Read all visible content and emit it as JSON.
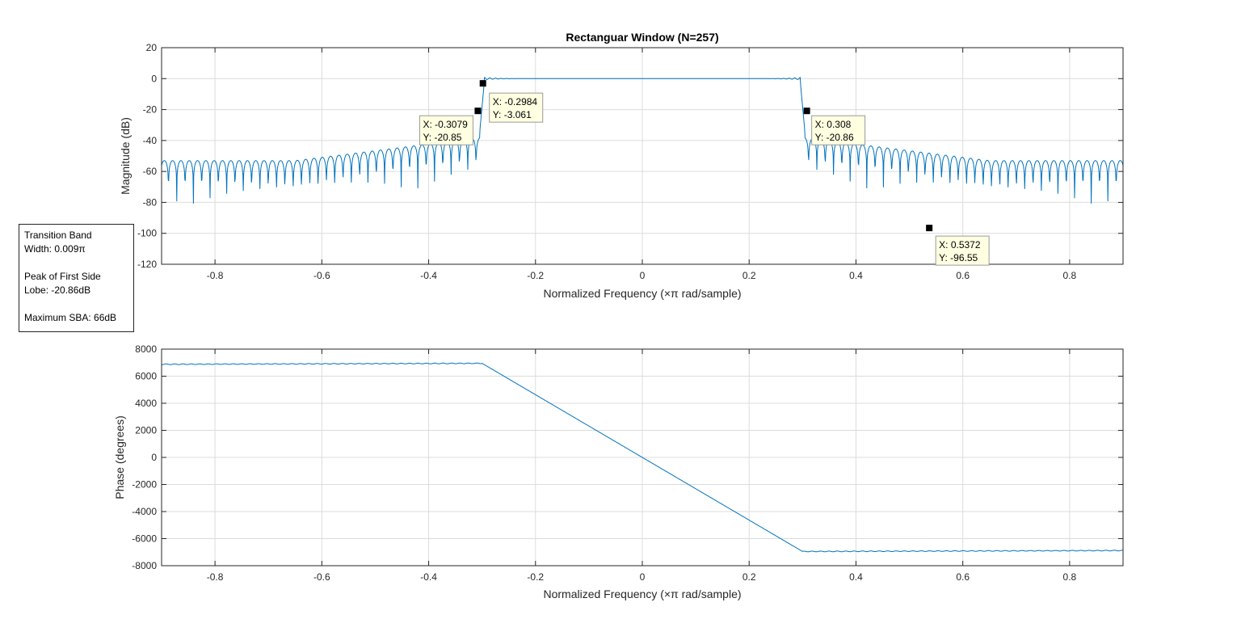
{
  "figure": {
    "title": "Rectanguar Window (N=257)"
  },
  "annotation": {
    "line1a": "Transition Band",
    "line1b": "Width: 0.009π",
    "line2a": "Peak of First Side",
    "line2b": "Lobe: -20.86dB",
    "line3": "Maximum SBA: 66dB"
  },
  "colors": {
    "series": "#0072bd",
    "tip_bg": "#ffffe1",
    "grid": "#dcdcdc"
  },
  "chart_data": [
    {
      "type": "line",
      "title": "Rectanguar Window (N=257)",
      "xlabel": "Normalized Frequency  (×π rad/sample)",
      "ylabel": "Magnitude (dB)",
      "xlim": [
        -0.9,
        0.9
      ],
      "ylim": [
        -120,
        20
      ],
      "xticks": [
        -0.8,
        -0.6,
        -0.4,
        -0.2,
        0,
        0.2,
        0.4,
        0.6,
        0.8
      ],
      "yticks": [
        20,
        0,
        -20,
        -40,
        -60,
        -80,
        -100,
        -120
      ],
      "grid": true,
      "series": [
        {
          "name": "Magnitude",
          "description": "Lowpass FIR (rectangular window): passband 0 dB for |w|<0.3, sidelobes ~-40 to -55 dB in stopband with nulls to ~-105 dB",
          "passband_edge": 0.3,
          "passband_level": 0,
          "stopband_floor_near_edge": -40,
          "stopband_floor_far": -55
        }
      ],
      "datatips": [
        {
          "x": -0.2984,
          "y": -3.061,
          "x_label": "X: -0.2984",
          "y_label": "Y: -3.061"
        },
        {
          "x": -0.3079,
          "y": -20.85,
          "x_label": "X: -0.3079",
          "y_label": "Y: -20.85"
        },
        {
          "x": 0.308,
          "y": -20.86,
          "x_label": "X: 0.308",
          "y_label": "Y: -20.86"
        },
        {
          "x": 0.5372,
          "y": -96.55,
          "x_label": "X: 0.5372",
          "y_label": "Y: -96.55"
        }
      ]
    },
    {
      "type": "line",
      "title": "",
      "xlabel": "Normalized Frequency  (×π rad/sample)",
      "ylabel": "Phase (degrees)",
      "xlim": [
        -0.9,
        0.9
      ],
      "ylim": [
        -8000,
        8000
      ],
      "xticks": [
        -0.8,
        -0.6,
        -0.4,
        -0.2,
        0,
        0.2,
        0.4,
        0.6,
        0.8
      ],
      "yticks": [
        8000,
        6000,
        4000,
        2000,
        0,
        -2000,
        -4000,
        -6000,
        -8000
      ],
      "grid": true,
      "series": [
        {
          "name": "Phase",
          "x": [
            -0.9,
            -0.3,
            0.3,
            0.9
          ],
          "y": [
            6880,
            6950,
            -6950,
            -6880
          ]
        }
      ]
    }
  ]
}
